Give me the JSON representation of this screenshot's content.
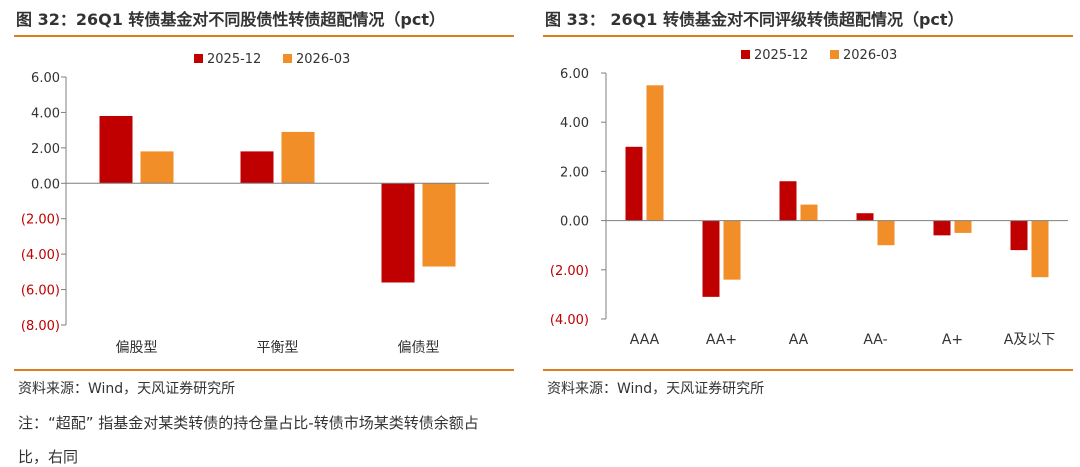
{
  "colors": {
    "series_2025_12": "#c00000",
    "series_2026_03": "#f28e28",
    "accent_rule": "#e07b1f",
    "negative_tick": "#c00000"
  },
  "source_left": "资料来源：Wind，天风证券研究所",
  "source_right": "资料来源：Wind，天风证券研究所",
  "note_line1": "注：“超配” 指基金对某类转债的持仓量占比-转债市场某类转债余额占",
  "note_line2": "比，右同",
  "chart_data": [
    {
      "type": "bar",
      "title": "图 32：26Q1 转债基金对不同股债性转债超配情况（pct）",
      "categories": [
        "偏股型",
        "平衡型",
        "偏债型"
      ],
      "series": [
        {
          "name": "2025-12",
          "values": [
            3.8,
            1.8,
            -5.6
          ]
        },
        {
          "name": "2026-03",
          "values": [
            1.8,
            2.9,
            -4.7
          ]
        }
      ],
      "ylim": [
        -8,
        6
      ],
      "yticks": [
        6,
        4,
        2,
        0,
        -2,
        -4,
        -6,
        -8
      ],
      "ytick_labels": [
        "6.00",
        "4.00",
        "2.00",
        "0.00",
        "(2.00)",
        "(4.00)",
        "(6.00)",
        "(8.00)"
      ],
      "legend": "top-center",
      "grid": false
    },
    {
      "type": "bar",
      "title": "图 33： 26Q1 转债基金对不同评级转债超配情况（pct）",
      "categories": [
        "AAA",
        "AA+",
        "AA",
        "AA-",
        "A+",
        "A及以下"
      ],
      "series": [
        {
          "name": "2025-12",
          "values": [
            3.0,
            -3.1,
            1.6,
            0.3,
            -0.6,
            -1.2
          ]
        },
        {
          "name": "2026-03",
          "values": [
            5.5,
            -2.4,
            0.65,
            -1.0,
            -0.5,
            -2.3
          ]
        }
      ],
      "ylim": [
        -4,
        6
      ],
      "yticks": [
        6,
        4,
        2,
        0,
        -2,
        -4
      ],
      "ytick_labels": [
        "6.00",
        "4.00",
        "2.00",
        "0.00",
        "(2.00)",
        "(4.00)"
      ],
      "legend": "top-center",
      "grid": false
    }
  ]
}
